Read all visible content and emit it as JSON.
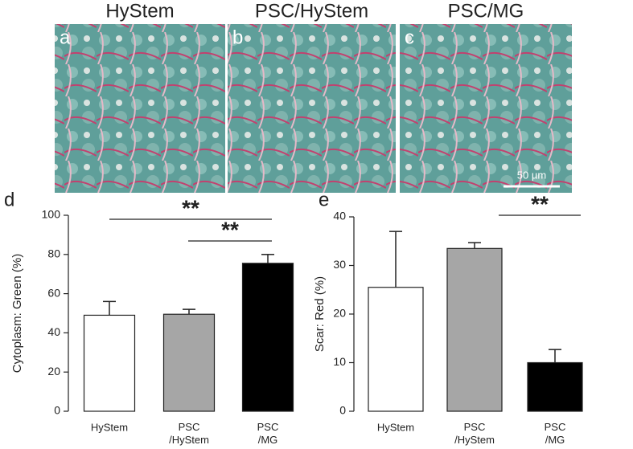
{
  "images": [
    {
      "title": "HyStem",
      "letter": "a"
    },
    {
      "title": "PSC/HyStem",
      "letter": "b"
    },
    {
      "title": "PSC/MG",
      "letter": "c",
      "scale_bar": "50 µm"
    }
  ],
  "chart_data": [
    {
      "type": "bar",
      "panel": "d",
      "y_label": "Cytoplasm: Green (%)",
      "categories": [
        "HyStem",
        "PSC\n/HyStem",
        "PSC\n/MG"
      ],
      "values": [
        49,
        49.5,
        75.5
      ],
      "errors": [
        7,
        2.5,
        4.5
      ],
      "colors": [
        "#ffffff",
        "#a6a6a6",
        "#000000"
      ],
      "ylim": [
        0,
        100
      ],
      "yticks": [
        0,
        20,
        40,
        60,
        80,
        100
      ],
      "annotations": [
        "**",
        "**"
      ]
    },
    {
      "type": "bar",
      "panel": "e",
      "y_label": "Scar: Red (%)",
      "categories": [
        "HyStem",
        "PSC\n/HyStem",
        "PSC\n/MG"
      ],
      "values": [
        25.5,
        33.5,
        10
      ],
      "errors": [
        11.5,
        1.2,
        2.7
      ],
      "colors": [
        "#ffffff",
        "#a6a6a6",
        "#000000"
      ],
      "ylim": [
        0,
        40
      ],
      "yticks": [
        0,
        10,
        20,
        30,
        40
      ],
      "annotations": [
        "**"
      ]
    }
  ]
}
